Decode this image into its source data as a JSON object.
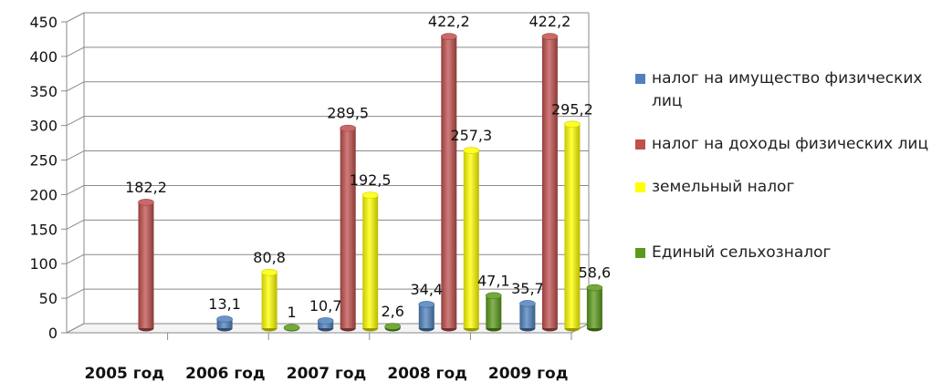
{
  "chart_data": {
    "type": "bar",
    "title": "",
    "xlabel": "",
    "ylabel": "",
    "ylim": [
      0,
      450
    ],
    "yticks": [
      "0",
      "50",
      "100",
      "150",
      "200",
      "250",
      "300",
      "350",
      "400",
      "450"
    ],
    "categories": [
      "2005 год",
      "2006 год",
      "2007 год",
      "2008 год",
      "2009 год"
    ],
    "grid": true,
    "legend_position": "right",
    "series": [
      {
        "name": "налог на имущество физических лиц",
        "color": "#4f81bd",
        "values": [
          null,
          13.1,
          10.7,
          34.4,
          35.7
        ],
        "labels": [
          "",
          "13,1",
          "10,7",
          "34,4",
          "35,7"
        ]
      },
      {
        "name": "налог на доходы физических лиц",
        "color": "#c0504d",
        "values": [
          182.2,
          null,
          289.5,
          422.2,
          422.2
        ],
        "labels": [
          "182,2",
          "",
          "289,5",
          "422,2",
          "422,2"
        ]
      },
      {
        "name": "земельный налог",
        "color": "#ffff00",
        "values": [
          null,
          80.8,
          192.5,
          257.3,
          295.2
        ],
        "labels": [
          "",
          "80,8",
          "192,5",
          "257,3",
          "295,2"
        ]
      },
      {
        "name": "Единый сельхозналог",
        "color": "#5a9a1a",
        "values": [
          null,
          1,
          2.6,
          47.1,
          58.6
        ],
        "labels": [
          "",
          "1",
          "2,6",
          "47,1",
          "58,6"
        ]
      }
    ]
  }
}
